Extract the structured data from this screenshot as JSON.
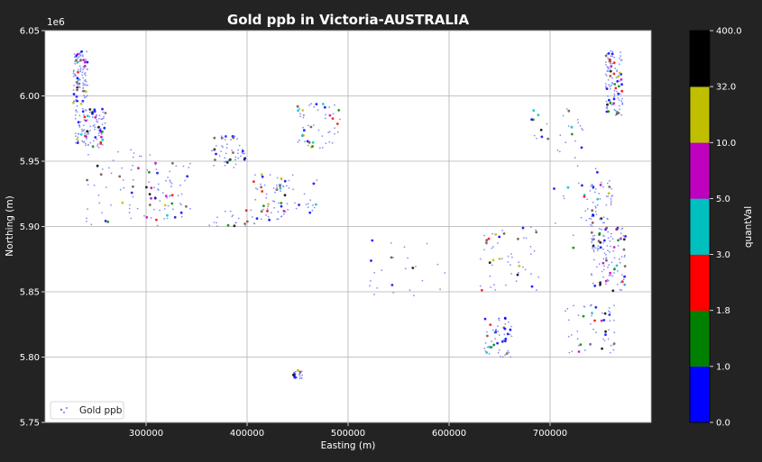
{
  "chart_data": {
    "type": "scatter",
    "title": "Gold ppb in Victoria-AUSTRALIA",
    "xlabel": "Easting (m)",
    "ylabel": "Northing (m)",
    "y_offset_label": "1e6",
    "xlim": [
      200000,
      800000
    ],
    "ylim": [
      5750000,
      6050000
    ],
    "x_ticks": [
      300000,
      400000,
      500000,
      600000,
      700000
    ],
    "x_tick_labels": [
      "300000",
      "400000",
      "500000",
      "600000",
      "700000"
    ],
    "y_ticks": [
      5750000,
      5800000,
      5850000,
      5900000,
      5950000,
      6000000,
      6050000
    ],
    "y_tick_labels": [
      "5.75",
      "5.80",
      "5.85",
      "5.90",
      "5.95",
      "6.00",
      "6.05"
    ],
    "grid": true,
    "legend": {
      "position": "lower-left",
      "entries": [
        "Gold ppb"
      ]
    },
    "colorbar": {
      "label": "quantVal",
      "bounds": [
        "0.0",
        "1.0",
        "1.8",
        "3.0",
        "5.0",
        "10.0",
        "32.0",
        "400.0"
      ],
      "colors": [
        "#0000ff",
        "#008000",
        "#ff0000",
        "#00bfbf",
        "#bf00bf",
        "#bfbf00",
        "#000000"
      ]
    },
    "point_colors": [
      "#6f7cf2",
      "#0000ff",
      "#008000",
      "#ff0000",
      "#00bfbf",
      "#bf00bf",
      "#bfbf00",
      "#000000",
      "#7a4a3a"
    ],
    "clusters": [
      {
        "x": [
          228000,
          242000
        ],
        "y": [
          5990000,
          6035000
        ],
        "intensity": "dense"
      },
      {
        "x": [
          230000,
          260000
        ],
        "y": [
          5960000,
          5990000
        ],
        "intensity": "dense"
      },
      {
        "x": [
          240000,
          320000
        ],
        "y": [
          5900000,
          5960000
        ],
        "intensity": "medium"
      },
      {
        "x": [
          300000,
          345000
        ],
        "y": [
          5905000,
          5950000
        ],
        "intensity": "medium"
      },
      {
        "x": [
          365000,
          400000
        ],
        "y": [
          5945000,
          5970000
        ],
        "intensity": "medium"
      },
      {
        "x": [
          360000,
          420000
        ],
        "y": [
          5900000,
          5915000
        ],
        "intensity": "sparse"
      },
      {
        "x": [
          405000,
          440000
        ],
        "y": [
          5905000,
          5940000
        ],
        "intensity": "medium"
      },
      {
        "x": [
          430000,
          470000
        ],
        "y": [
          5905000,
          5940000
        ],
        "intensity": "sparse"
      },
      {
        "x": [
          450000,
          492000
        ],
        "y": [
          5960000,
          5995000
        ],
        "intensity": "medium"
      },
      {
        "x": [
          520000,
          600000
        ],
        "y": [
          5840000,
          5890000
        ],
        "intensity": "sparse"
      },
      {
        "x": [
          630000,
          690000
        ],
        "y": [
          5850000,
          5900000
        ],
        "intensity": "medium"
      },
      {
        "x": [
          635000,
          662000
        ],
        "y": [
          5800000,
          5830000
        ],
        "intensity": "medium"
      },
      {
        "x": [
          680000,
          735000
        ],
        "y": [
          5960000,
          5990000
        ],
        "intensity": "sparse"
      },
      {
        "x": [
          700000,
          760000
        ],
        "y": [
          5880000,
          5960000
        ],
        "intensity": "sparse"
      },
      {
        "x": [
          715000,
          765000
        ],
        "y": [
          5800000,
          5840000
        ],
        "intensity": "medium"
      },
      {
        "x": [
          740000,
          775000
        ],
        "y": [
          5850000,
          5900000
        ],
        "intensity": "dense"
      },
      {
        "x": [
          755000,
          772000
        ],
        "y": [
          5985000,
          6035000
        ],
        "intensity": "dense"
      },
      {
        "x": [
          733000,
          762000
        ],
        "y": [
          5900000,
          5935000
        ],
        "intensity": "medium"
      },
      {
        "x": [
          445000,
          455000
        ],
        "y": [
          5783000,
          5790000
        ],
        "intensity": "sparse"
      }
    ]
  }
}
